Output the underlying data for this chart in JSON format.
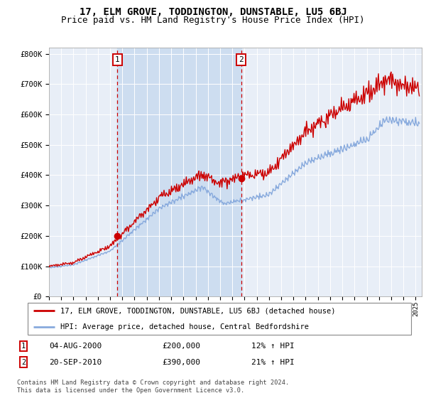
{
  "title": "17, ELM GROVE, TODDINGTON, DUNSTABLE, LU5 6BJ",
  "subtitle": "Price paid vs. HM Land Registry's House Price Index (HPI)",
  "ylim": [
    0,
    820000
  ],
  "yticks": [
    0,
    100000,
    200000,
    300000,
    400000,
    500000,
    600000,
    700000,
    800000
  ],
  "ytick_labels": [
    "£0",
    "£100K",
    "£200K",
    "£300K",
    "£400K",
    "£500K",
    "£600K",
    "£700K",
    "£800K"
  ],
  "xlim_start": 1995.0,
  "xlim_end": 2025.5,
  "line_color_price": "#cc0000",
  "line_color_hpi": "#88aadd",
  "plot_bg_color": "#e8eef7",
  "shade_color": "#cdddf0",
  "transaction1": {
    "year": 2000.58,
    "price": 200000,
    "label": "1",
    "date": "04-AUG-2000",
    "pct": "12%",
    "arrow": "↑"
  },
  "transaction2": {
    "year": 2010.72,
    "price": 390000,
    "label": "2",
    "date": "20-SEP-2010",
    "pct": "21%",
    "arrow": "↑"
  },
  "legend_line1": "17, ELM GROVE, TODDINGTON, DUNSTABLE, LU5 6BJ (detached house)",
  "legend_line2": "HPI: Average price, detached house, Central Bedfordshire",
  "table_row1": [
    "1",
    "04-AUG-2000",
    "£200,000",
    "12% ↑ HPI"
  ],
  "table_row2": [
    "2",
    "20-SEP-2010",
    "£390,000",
    "21% ↑ HPI"
  ],
  "footnote": "Contains HM Land Registry data © Crown copyright and database right 2024.\nThis data is licensed under the Open Government Licence v3.0.",
  "title_fontsize": 10,
  "subtitle_fontsize": 9
}
